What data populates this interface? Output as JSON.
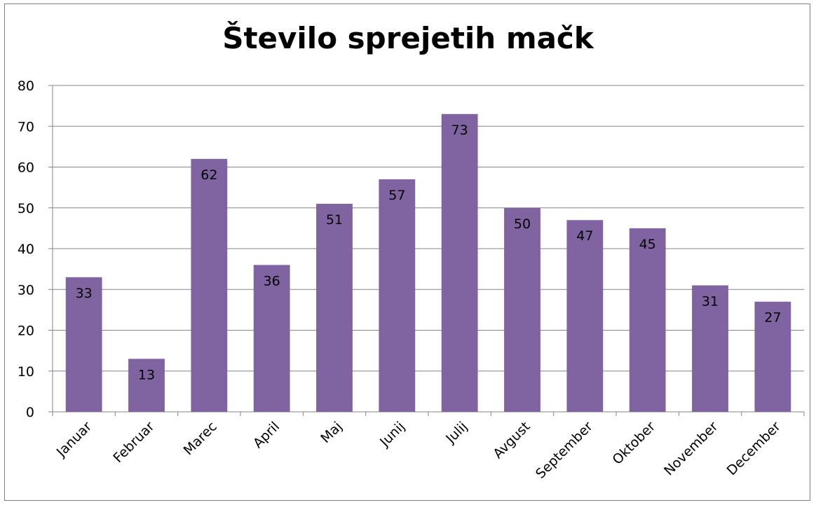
{
  "chart_data": {
    "type": "bar",
    "title": "Število sprejetih mačk",
    "categories": [
      "Januar",
      "Februar",
      "Marec",
      "April",
      "Maj",
      "Junij",
      "Julij",
      "Avgust",
      "September",
      "Oktober",
      "November",
      "December"
    ],
    "values": [
      33,
      13,
      62,
      36,
      51,
      57,
      73,
      50,
      47,
      45,
      31,
      27
    ],
    "yticks": [
      0,
      10,
      20,
      30,
      40,
      50,
      60,
      70,
      80
    ],
    "ylim": [
      0,
      80
    ],
    "grid": true,
    "legend": "none",
    "bar_color": "#8064A2",
    "grid_color": "#868686"
  }
}
